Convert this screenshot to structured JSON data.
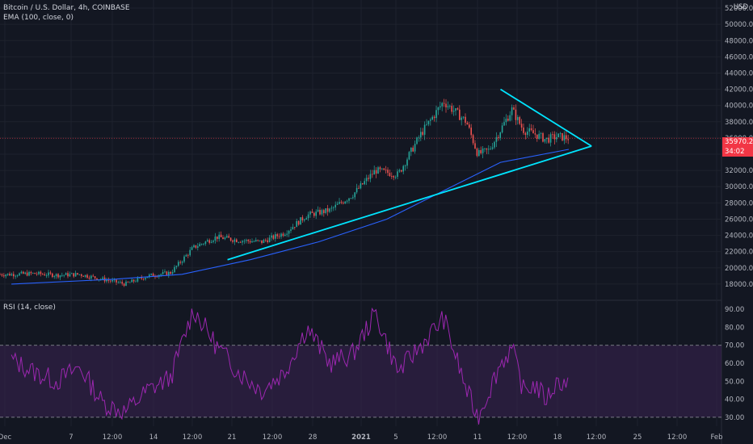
{
  "header": {
    "symbol": "Bitcoin / U.S. Dollar, 4h, COINBASE",
    "ema_label": "EMA (100, close, 0)",
    "rsi_label": "RSI (14, close)",
    "currency": "USD"
  },
  "price_tags": {
    "last_price": "35970.22",
    "countdown": "34:02"
  },
  "colors": {
    "background": "#131722",
    "up_candle": "#26a69a",
    "down_candle": "#ef5350",
    "ema": "#2962ff",
    "trendline": "#00e5ff",
    "rsi_line": "#9c27b0",
    "rsi_band": "#3b2352",
    "price_tag": "#f23645"
  },
  "chart_data": [
    {
      "type": "candlestick",
      "timeframe": "4h",
      "ylim": [
        16000,
        53000
      ],
      "y_ticks": [
        18000,
        20000,
        22000,
        24000,
        26000,
        28000,
        30000,
        32000,
        34000,
        36000,
        38000,
        40000,
        42000,
        44000,
        46000,
        48000,
        50000,
        52000
      ],
      "x_tick_labels": [
        "Dec",
        "7",
        "12:00",
        "14",
        "12:00",
        "21",
        "12:00",
        "28",
        "2021",
        "5",
        "12:00",
        "11",
        "12:00",
        "18",
        "12:00",
        "25",
        "12:00",
        "Feb"
      ],
      "close_path": [
        {
          "date": "2020-12-01",
          "close": 19200
        },
        {
          "date": "2020-12-03",
          "close": 19300
        },
        {
          "date": "2020-12-05",
          "close": 19100
        },
        {
          "date": "2020-12-07",
          "close": 19200
        },
        {
          "date": "2020-12-09",
          "close": 18600
        },
        {
          "date": "2020-12-11",
          "close": 18000
        },
        {
          "date": "2020-12-13",
          "close": 19000
        },
        {
          "date": "2020-12-15",
          "close": 19400
        },
        {
          "date": "2020-12-17",
          "close": 22500
        },
        {
          "date": "2020-12-19",
          "close": 23800
        },
        {
          "date": "2020-12-21",
          "close": 23400
        },
        {
          "date": "2020-12-23",
          "close": 23200
        },
        {
          "date": "2020-12-25",
          "close": 24300
        },
        {
          "date": "2020-12-27",
          "close": 26500
        },
        {
          "date": "2020-12-29",
          "close": 27100
        },
        {
          "date": "2020-12-31",
          "close": 29000
        },
        {
          "date": "2021-01-02",
          "close": 32000
        },
        {
          "date": "2021-01-04",
          "close": 31500
        },
        {
          "date": "2021-01-06",
          "close": 36500
        },
        {
          "date": "2021-01-08",
          "close": 40500
        },
        {
          "date": "2021-01-10",
          "close": 38000
        },
        {
          "date": "2021-01-11",
          "close": 34000
        },
        {
          "date": "2021-01-12",
          "close": 34500
        },
        {
          "date": "2021-01-13",
          "close": 37000
        },
        {
          "date": "2021-01-14",
          "close": 39500
        },
        {
          "date": "2021-01-15",
          "close": 37000
        },
        {
          "date": "2021-01-16",
          "close": 36500
        },
        {
          "date": "2021-01-17",
          "close": 35800
        },
        {
          "date": "2021-01-18",
          "close": 36200
        },
        {
          "date": "2021-01-19",
          "close": 35970
        }
      ],
      "ema_100": [
        {
          "date": "2020-12-01",
          "value": 18000
        },
        {
          "date": "2020-12-10",
          "value": 18600
        },
        {
          "date": "2020-12-16",
          "value": 19200
        },
        {
          "date": "2020-12-22",
          "value": 21000
        },
        {
          "date": "2020-12-28",
          "value": 23200
        },
        {
          "date": "2021-01-03",
          "value": 26000
        },
        {
          "date": "2021-01-08",
          "value": 29500
        },
        {
          "date": "2021-01-13",
          "value": 33000
        },
        {
          "date": "2021-01-19",
          "value": 34600
        }
      ],
      "trendlines": [
        {
          "name": "rising support",
          "from": {
            "date": "2020-12-20",
            "price": 21000
          },
          "to": {
            "date": "2021-01-21",
            "price": 35000
          }
        },
        {
          "name": "falling resistance",
          "from": {
            "date": "2021-01-13",
            "price": 42000
          },
          "to": {
            "date": "2021-01-21",
            "price": 35000
          }
        }
      ],
      "last_price": 35970.22
    },
    {
      "type": "line",
      "title": "RSI (14, close)",
      "ylim": [
        25,
        95
      ],
      "y_ticks": [
        30,
        40,
        50,
        60,
        70,
        80,
        90
      ],
      "band": [
        30,
        70
      ],
      "values": [
        {
          "date": "2020-12-01",
          "rsi": 62
        },
        {
          "date": "2020-12-03",
          "rsi": 55
        },
        {
          "date": "2020-12-05",
          "rsi": 50
        },
        {
          "date": "2020-12-07",
          "rsi": 58
        },
        {
          "date": "2020-12-09",
          "rsi": 38
        },
        {
          "date": "2020-12-11",
          "rsi": 33
        },
        {
          "date": "2020-12-13",
          "rsi": 45
        },
        {
          "date": "2020-12-15",
          "rsi": 52
        },
        {
          "date": "2020-12-17",
          "rsi": 90
        },
        {
          "date": "2020-12-19",
          "rsi": 70
        },
        {
          "date": "2020-12-21",
          "rsi": 55
        },
        {
          "date": "2020-12-23",
          "rsi": 45
        },
        {
          "date": "2020-12-25",
          "rsi": 55
        },
        {
          "date": "2020-12-27",
          "rsi": 80
        },
        {
          "date": "2020-12-29",
          "rsi": 60
        },
        {
          "date": "2020-12-31",
          "rsi": 65
        },
        {
          "date": "2021-01-02",
          "rsi": 88
        },
        {
          "date": "2021-01-04",
          "rsi": 55
        },
        {
          "date": "2021-01-06",
          "rsi": 70
        },
        {
          "date": "2021-01-08",
          "rsi": 85
        },
        {
          "date": "2021-01-10",
          "rsi": 45
        },
        {
          "date": "2021-01-11",
          "rsi": 30
        },
        {
          "date": "2021-01-12",
          "rsi": 45
        },
        {
          "date": "2021-01-13",
          "rsi": 60
        },
        {
          "date": "2021-01-14",
          "rsi": 68
        },
        {
          "date": "2021-01-15",
          "rsi": 45
        },
        {
          "date": "2021-01-16",
          "rsi": 48
        },
        {
          "date": "2021-01-17",
          "rsi": 40
        },
        {
          "date": "2021-01-18",
          "rsi": 50
        },
        {
          "date": "2021-01-19",
          "rsi": 49
        }
      ]
    }
  ]
}
